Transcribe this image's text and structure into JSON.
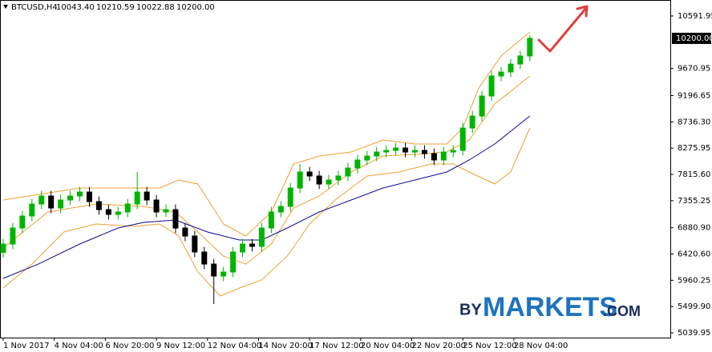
{
  "chart_data": {
    "type": "candlestick",
    "title": "BTCUSD,H4",
    "ohlc_header": [
      "10043.40",
      "10210.59",
      "10022.88",
      "10200.00"
    ],
    "candles": {
      "up_color": "#00b400",
      "down_color": "#000000",
      "x": [
        0,
        3,
        6,
        9,
        12,
        15,
        18,
        21,
        24,
        27,
        30,
        33,
        36,
        39,
        42,
        45,
        48,
        51,
        54,
        57,
        60,
        63,
        66,
        69,
        72,
        75,
        78,
        81,
        84,
        87,
        90,
        93,
        96,
        99,
        102,
        105,
        108,
        111,
        114,
        117,
        120,
        123,
        126,
        129,
        132,
        135,
        138,
        141,
        144,
        147,
        150,
        153,
        156,
        159,
        162,
        165
      ],
      "open": [
        6450,
        6596,
        6876,
        7087,
        7297,
        7437,
        7227,
        7367,
        7437,
        7507,
        7339,
        7199,
        7115,
        7157,
        7297,
        7507,
        7367,
        7157,
        7199,
        6876,
        6736,
        6456,
        6245,
        6035,
        6105,
        6456,
        6596,
        6554,
        6876,
        7157,
        7255,
        7577,
        7858,
        7788,
        7647,
        7718,
        7788,
        7928,
        8068,
        8138,
        8208,
        8236,
        8278,
        8208,
        8236,
        8180,
        8068,
        8208,
        8236,
        8629,
        8839,
        9190,
        9540,
        9610,
        9750,
        9891
      ],
      "high": [
        6686,
        6966,
        7177,
        7387,
        7527,
        7527,
        7457,
        7527,
        7597,
        7597,
        7429,
        7289,
        7247,
        7387,
        7858,
        7597,
        7457,
        7289,
        7289,
        6966,
        6826,
        6546,
        6335,
        6195,
        6546,
        6686,
        6686,
        6966,
        7247,
        7345,
        7667,
        7998,
        7948,
        7878,
        7808,
        7878,
        8018,
        8158,
        8228,
        8298,
        8326,
        8368,
        8368,
        8326,
        8326,
        8270,
        8298,
        8326,
        8719,
        8929,
        9280,
        9630,
        9700,
        9840,
        9981,
        10250
      ],
      "low": [
        6360,
        6506,
        6786,
        6997,
        7207,
        7137,
        7137,
        7277,
        7347,
        7249,
        7109,
        7025,
        7025,
        7067,
        7207,
        7277,
        7067,
        7067,
        6786,
        6646,
        6366,
        6155,
        5544,
        5945,
        6015,
        6366,
        6464,
        6464,
        6786,
        7067,
        7165,
        7487,
        7698,
        7557,
        7557,
        7628,
        7698,
        7838,
        7978,
        8048,
        8118,
        8146,
        8118,
        8118,
        8090,
        7978,
        7978,
        8118,
        8146,
        8539,
        8749,
        9100,
        9450,
        9520,
        9660,
        9801
      ],
      "close": [
        6596,
        6876,
        7087,
        7297,
        7437,
        7227,
        7367,
        7437,
        7507,
        7339,
        7199,
        7115,
        7157,
        7297,
        7507,
        7367,
        7157,
        7199,
        6876,
        6736,
        6456,
        6245,
        6035,
        6105,
        6456,
        6596,
        6554,
        6876,
        7157,
        7255,
        7577,
        7858,
        7788,
        7647,
        7718,
        7788,
        7928,
        8068,
        8138,
        8208,
        8236,
        8278,
        8208,
        8236,
        8180,
        8068,
        8208,
        8236,
        8629,
        8839,
        9190,
        9540,
        9610,
        9750,
        9891,
        10200
      ]
    },
    "lines": [
      {
        "color": "#f0a030",
        "x": [
          0,
          24,
          36,
          49,
          55,
          61,
          69,
          76,
          84,
          91,
          99,
          109,
          119,
          129,
          139,
          144,
          149,
          156,
          165
        ],
        "values": [
          7367,
          7577,
          7577,
          7577,
          7718,
          7647,
          6946,
          6736,
          7157,
          7998,
          8138,
          8208,
          8419,
          8348,
          8348,
          8629,
          9330,
          9891,
          10311
        ]
      },
      {
        "color": "#f0a030",
        "x": [
          0,
          14,
          29,
          44,
          54,
          61,
          69,
          76,
          84,
          91,
          99,
          109,
          119,
          129,
          139,
          146,
          154,
          165
        ],
        "values": [
          6526,
          7157,
          7297,
          7255,
          7157,
          6806,
          6385,
          6245,
          6596,
          7227,
          7437,
          7858,
          8138,
          8166,
          8208,
          8419,
          9049,
          9540
        ]
      },
      {
        "color": "#f0a030",
        "x": [
          0,
          9,
          19,
          29,
          41,
          49,
          55,
          61,
          68,
          74,
          81,
          89,
          96,
          104,
          114,
          124,
          134,
          141,
          146,
          154,
          159,
          165
        ],
        "values": [
          5825,
          6245,
          6806,
          6946,
          6904,
          6946,
          6736,
          6105,
          5685,
          5825,
          5965,
          6385,
          6946,
          7367,
          7788,
          7858,
          7998,
          7998,
          7858,
          7647,
          7858,
          8629
        ]
      },
      {
        "color": "#0a0a96",
        "x": [
          0,
          11,
          24,
          36,
          44,
          54,
          64,
          74,
          81,
          89,
          99,
          109,
          119,
          129,
          139,
          146,
          154,
          165
        ],
        "values": [
          5993,
          6245,
          6596,
          6876,
          6975,
          7017,
          6806,
          6666,
          6666,
          6876,
          7157,
          7367,
          7577,
          7718,
          7858,
          8068,
          8348,
          8839
        ]
      }
    ],
    "xlim": [
      -1,
      208
    ],
    "ylim": [
      4956,
      10872
    ],
    "yticks": [
      10591.95,
      9670.95,
      9196.65,
      {
        "value": 8736.3,
        "label": "8736.30"
      },
      8275.95,
      {
        "value": 7815.6,
        "label": "7815.60"
      },
      7355.25,
      {
        "value": 6880.9,
        "label": "6880.90"
      },
      {
        "value": 6420.6,
        "label": "6420.60"
      },
      5960.25,
      {
        "value": 5499.9,
        "label": "5499.90"
      },
      5039.95
    ],
    "xticks": [
      {
        "value": 0,
        "label": "1 Nov 2017"
      },
      {
        "value": 16,
        "label": "4 Nov 04:00"
      },
      {
        "value": 32,
        "label": "6 Nov 20:00"
      },
      {
        "value": 48,
        "label": "9 Nov 12:00"
      },
      {
        "value": 64,
        "label": "12 Nov 04:00"
      },
      {
        "value": 80,
        "label": "14 Nov 20:00"
      },
      {
        "value": 96,
        "label": "17 Nov 12:00"
      },
      {
        "value": 112,
        "label": "20 Nov 04:00"
      },
      {
        "value": 128,
        "label": "22 Nov 20:00"
      },
      {
        "value": 144,
        "label": "25 Nov 12:00"
      },
      {
        "value": 160,
        "label": "28 Nov 04:00"
      }
    ],
    "last_price": {
      "value": 10200,
      "label": "10200.00"
    },
    "watermark": {
      "prefix": "BY",
      "main": "MARKETS",
      "suffix": ".COM"
    }
  }
}
